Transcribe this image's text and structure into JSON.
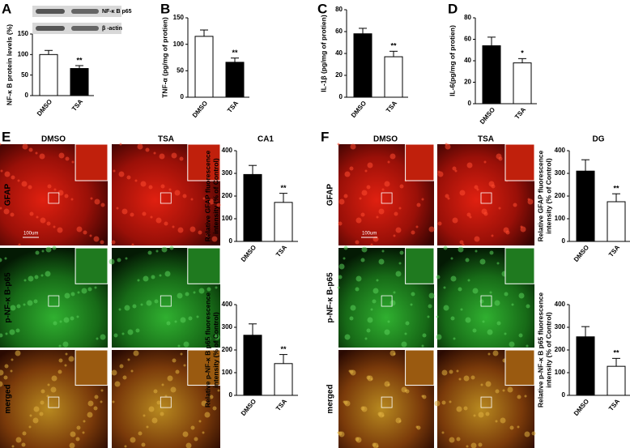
{
  "chart_data": [
    {
      "type": "bar",
      "panel": "A",
      "blot_labels": [
        "NF-κ B p65",
        "β -actin"
      ],
      "ylabel": [
        "NF-κ B protein levels (%)"
      ],
      "categories": [
        "DMSO",
        "TSA"
      ],
      "values": [
        100,
        66
      ],
      "errors": [
        10,
        7
      ],
      "colors": [
        "#ffffff",
        "#000000"
      ],
      "ylim": [
        0,
        150
      ],
      "yticks": [
        0,
        50,
        100,
        150
      ],
      "annotations": [
        {
          "index": 1,
          "text": "**"
        }
      ]
    },
    {
      "type": "bar",
      "panel": "B",
      "ylabel": [
        "TNF-α (pg/mg of protien)"
      ],
      "categories": [
        "DMSO",
        "TSA"
      ],
      "values": [
        115,
        66
      ],
      "errors": [
        12,
        8
      ],
      "colors": [
        "#ffffff",
        "#000000"
      ],
      "ylim": [
        0,
        150
      ],
      "yticks": [
        0,
        50,
        100,
        150
      ],
      "annotations": [
        {
          "index": 1,
          "text": "**"
        }
      ]
    },
    {
      "type": "bar",
      "panel": "C",
      "ylabel": [
        "IL-1β (pg/mg of protien)"
      ],
      "categories": [
        "DMSO",
        "TSA"
      ],
      "values": [
        58,
        37
      ],
      "errors": [
        5,
        5
      ],
      "colors": [
        "#000000",
        "#ffffff"
      ],
      "ylim": [
        0,
        80
      ],
      "yticks": [
        0,
        20,
        40,
        60,
        80
      ],
      "annotations": [
        {
          "index": 1,
          "text": "**"
        }
      ]
    },
    {
      "type": "bar",
      "panel": "D",
      "ylabel": [
        "IL-6(pg/mg of protien)"
      ],
      "categories": [
        "DMSO",
        "TSA"
      ],
      "values": [
        54,
        38
      ],
      "errors": [
        8,
        4
      ],
      "colors": [
        "#000000",
        "#ffffff"
      ],
      "ylim": [
        0,
        80
      ],
      "yticks": [
        0,
        20,
        40,
        60,
        80
      ],
      "annotations": [
        {
          "index": 1,
          "text": "*"
        }
      ]
    },
    {
      "type": "bar",
      "title": "CA1",
      "ylabel": [
        "Relative GFAP fluorescence",
        "intensity (% of Control)"
      ],
      "categories": [
        "DMSO",
        "TSA"
      ],
      "values": [
        295,
        172
      ],
      "errors": [
        40,
        40
      ],
      "colors": [
        "#000000",
        "#ffffff"
      ],
      "ylim": [
        0,
        400
      ],
      "yticks": [
        0,
        100,
        200,
        300,
        400
      ],
      "annotations": [
        {
          "index": 1,
          "text": "**"
        }
      ]
    },
    {
      "type": "bar",
      "ylabel": [
        "Relative p-NF-κ B p65 fluorescence",
        "intensity (% of Control)"
      ],
      "categories": [
        "DMSO",
        "TSA"
      ],
      "values": [
        265,
        140
      ],
      "errors": [
        50,
        40
      ],
      "colors": [
        "#000000",
        "#ffffff"
      ],
      "ylim": [
        0,
        400
      ],
      "yticks": [
        0,
        100,
        200,
        300,
        400
      ],
      "annotations": [
        {
          "index": 1,
          "text": "**"
        }
      ]
    },
    {
      "type": "bar",
      "title": "DG",
      "ylabel": [
        "Relative GFAP fluorescence",
        "intensity (% of Control)"
      ],
      "categories": [
        "DMSO",
        "TSA"
      ],
      "values": [
        310,
        175
      ],
      "errors": [
        50,
        35
      ],
      "colors": [
        "#000000",
        "#ffffff"
      ],
      "ylim": [
        0,
        400
      ],
      "yticks": [
        0,
        100,
        200,
        300,
        400
      ],
      "annotations": [
        {
          "index": 1,
          "text": "**"
        }
      ]
    },
    {
      "type": "bar",
      "ylabel": [
        "Relative p-NF-κ B p65 fluorescence",
        "intensity (% of Control)"
      ],
      "categories": [
        "DMSO",
        "TSA"
      ],
      "values": [
        258,
        128
      ],
      "errors": [
        45,
        35
      ],
      "colors": [
        "#000000",
        "#ffffff"
      ],
      "ylim": [
        0,
        400
      ],
      "yticks": [
        0,
        100,
        200,
        300,
        400
      ],
      "annotations": [
        {
          "index": 1,
          "text": "**"
        }
      ]
    }
  ],
  "image_panels": [
    {
      "panel": "E",
      "columns": [
        "DMSO",
        "TSA"
      ],
      "rows": [
        "GFAP",
        "p-NF-κ B-p65",
        "merged"
      ],
      "scale_bar": "100um"
    },
    {
      "panel": "F",
      "columns": [
        "DMSO",
        "TSA"
      ],
      "rows": [
        "GFAP",
        "p-NF-κ B-p65",
        "merged"
      ],
      "scale_bar": "100um"
    }
  ]
}
